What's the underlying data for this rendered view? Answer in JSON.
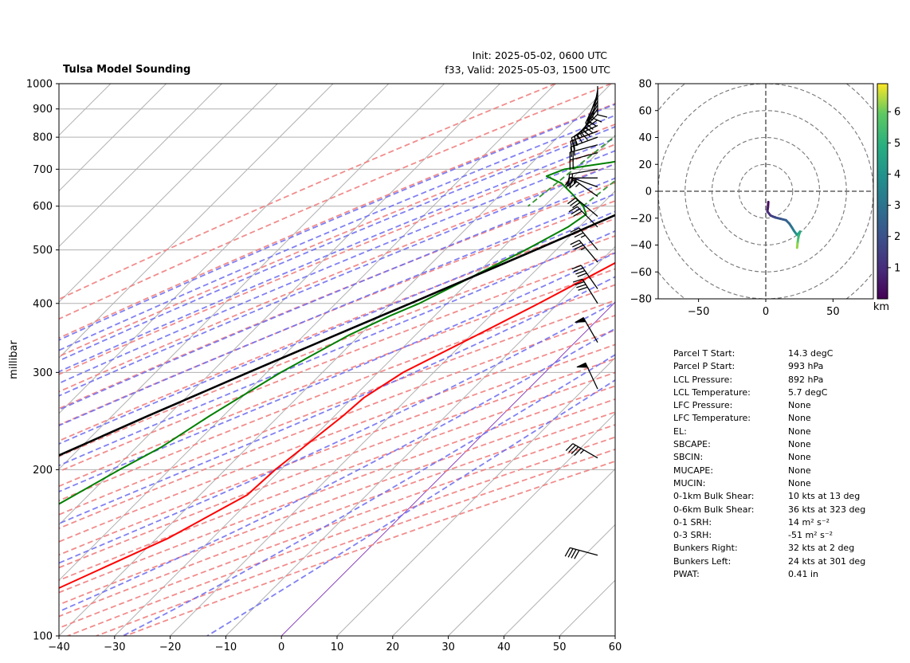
{
  "header": {
    "title": "Tulsa Model Sounding",
    "init": "Init: 2025-05-02, 0600 UTC",
    "valid": "f33, Valid: 2025-05-03, 1500 UTC"
  },
  "colors": {
    "temperature": "#ff0000",
    "dewpoint": "#008000",
    "parcel": "#000000",
    "dry_adiabat": "#f08080",
    "moist_adiabat": "#6a6af0",
    "mixing_ratio": "#228b22",
    "isobar": "#b0b0b0",
    "isotherm": "#b0b0b0",
    "zero_isotherm": "#8a3fbf"
  },
  "chart_data": [
    {
      "type": "line",
      "chart": "skew-t",
      "ylabel": "millibar",
      "xlabel": "",
      "xlim": [
        -40,
        60
      ],
      "ylim": [
        1000,
        100
      ],
      "y_scale": "log",
      "skew_deg": 45,
      "grid": true,
      "xticks": [
        -40,
        -30,
        -20,
        -10,
        0,
        10,
        20,
        30,
        40,
        50,
        60
      ],
      "yticks": [
        1000,
        900,
        800,
        700,
        600,
        500,
        400,
        300,
        200,
        100
      ],
      "series": [
        {
          "key": "temperature",
          "points": [
            [
              1000,
              14.3
            ],
            [
              950,
              12.5
            ],
            [
              900,
              9.8
            ],
            [
              850,
              10.6
            ],
            [
              800,
              11.7
            ],
            [
              750,
              10.5
            ],
            [
              700,
              9.3
            ],
            [
              650,
              6.5
            ],
            [
              600,
              3.0
            ],
            [
              550,
              -1.0
            ],
            [
              500,
              -5.0
            ],
            [
              450,
              -9.0
            ],
            [
              400,
              -13.5
            ],
            [
              350,
              -19.0
            ],
            [
              300,
              -25.5
            ],
            [
              270,
              -28.0
            ],
            [
              250,
              -28.5
            ],
            [
              200,
              -31.0
            ],
            [
              180,
              -31.5
            ],
            [
              150,
              -38.0
            ],
            [
              120,
              -49.5
            ],
            [
              100,
              -57.0
            ]
          ]
        },
        {
          "key": "dewpoint",
          "points": [
            [
              1000,
              7.7
            ],
            [
              960,
              7.5
            ],
            [
              940,
              4.0
            ],
            [
              920,
              2.5
            ],
            [
              900,
              1.0
            ],
            [
              870,
              -0.5
            ],
            [
              850,
              -2.5
            ],
            [
              820,
              -5.5
            ],
            [
              800,
              -8.5
            ],
            [
              780,
              -12.5
            ],
            [
              750,
              -18.0
            ],
            [
              720,
              -26.0
            ],
            [
              700,
              -33.0
            ],
            [
              680,
              -35.0
            ],
            [
              660,
              -31.0
            ],
            [
              630,
              -27.0
            ],
            [
              600,
              -23.0
            ],
            [
              580,
              -21.0
            ],
            [
              550,
              -22.0
            ],
            [
              500,
              -25.5
            ],
            [
              450,
              -30.0
            ],
            [
              400,
              -35.0
            ],
            [
              380,
              -38.0
            ],
            [
              350,
              -42.0
            ],
            [
              300,
              -47.5
            ],
            [
              250,
              -52.5
            ],
            [
              220,
              -55.5
            ],
            [
              200,
              -59.0
            ],
            [
              150,
              -68.5
            ],
            [
              120,
              -72.0
            ],
            [
              100,
              -79.0
            ]
          ]
        },
        {
          "key": "parcel",
          "points": [
            [
              1000,
              14.9
            ],
            [
              992,
              14.3
            ],
            [
              950,
              10.4
            ],
            [
              900,
              5.8
            ],
            [
              892,
              5.7
            ],
            [
              850,
              3.5
            ],
            [
              800,
              0.9
            ],
            [
              750,
              -2.0
            ],
            [
              700,
              -5.5
            ],
            [
              650,
              -9.3
            ],
            [
              600,
              -13.6
            ],
            [
              550,
              -18.4
            ],
            [
              500,
              -23.7
            ],
            [
              450,
              -29.8
            ],
            [
              400,
              -36.6
            ],
            [
              350,
              -44.4
            ],
            [
              300,
              -53.3
            ],
            [
              250,
              -63.6
            ],
            [
              200,
              -75.7
            ],
            [
              150,
              -90.5
            ],
            [
              120,
              -101.0
            ],
            [
              100,
              -109.5
            ]
          ]
        }
      ],
      "wind_barbs": [
        {
          "p": 990,
          "speed_kt": 10,
          "dir_deg": 180
        },
        {
          "p": 975,
          "speed_kt": 10,
          "dir_deg": 190
        },
        {
          "p": 960,
          "speed_kt": 15,
          "dir_deg": 200
        },
        {
          "p": 945,
          "speed_kt": 15,
          "dir_deg": 205
        },
        {
          "p": 930,
          "speed_kt": 15,
          "dir_deg": 205
        },
        {
          "p": 915,
          "speed_kt": 15,
          "dir_deg": 210
        },
        {
          "p": 900,
          "speed_kt": 15,
          "dir_deg": 215
        },
        {
          "p": 880,
          "speed_kt": 15,
          "dir_deg": 225
        },
        {
          "p": 860,
          "speed_kt": 15,
          "dir_deg": 235
        },
        {
          "p": 840,
          "speed_kt": 20,
          "dir_deg": 245
        },
        {
          "p": 820,
          "speed_kt": 20,
          "dir_deg": 250
        },
        {
          "p": 800,
          "speed_kt": 20,
          "dir_deg": 250
        },
        {
          "p": 775,
          "speed_kt": 20,
          "dir_deg": 255
        },
        {
          "p": 750,
          "speed_kt": 20,
          "dir_deg": 255
        },
        {
          "p": 700,
          "speed_kt": 20,
          "dir_deg": 260
        },
        {
          "p": 675,
          "speed_kt": 25,
          "dir_deg": 270
        },
        {
          "p": 650,
          "speed_kt": 25,
          "dir_deg": 290
        },
        {
          "p": 625,
          "speed_kt": 25,
          "dir_deg": 305
        },
        {
          "p": 575,
          "speed_kt": 30,
          "dir_deg": 310
        },
        {
          "p": 550,
          "speed_kt": 30,
          "dir_deg": 315
        },
        {
          "p": 500,
          "speed_kt": 35,
          "dir_deg": 320
        },
        {
          "p": 475,
          "speed_kt": 35,
          "dir_deg": 320
        },
        {
          "p": 425,
          "speed_kt": 40,
          "dir_deg": 325
        },
        {
          "p": 400,
          "speed_kt": 40,
          "dir_deg": 328
        },
        {
          "p": 340,
          "speed_kt": 50,
          "dir_deg": 330
        },
        {
          "p": 280,
          "speed_kt": 50,
          "dir_deg": 335
        },
        {
          "p": 210,
          "speed_kt": 45,
          "dir_deg": 300
        },
        {
          "p": 140,
          "speed_kt": 40,
          "dir_deg": 285
        }
      ]
    },
    {
      "type": "line",
      "chart": "hodograph",
      "xlabel": "",
      "ylabel": "",
      "xlim": [
        -80,
        80
      ],
      "ylim": [
        -80,
        80
      ],
      "xticks": [
        -50,
        0,
        50
      ],
      "yticks": [
        -80,
        -60,
        -40,
        -20,
        0,
        20,
        40,
        60,
        80
      ],
      "rings": [
        20,
        40,
        60,
        80,
        100,
        120
      ],
      "colorbar": {
        "label": "km",
        "min": 0,
        "max": 6.9,
        "ticks": [
          1,
          2,
          3,
          4,
          5,
          6
        ],
        "colormap": "viridis"
      },
      "points": [
        [
          1.9,
          -8.0,
          0.0
        ],
        [
          1.6,
          -12.0,
          0.4
        ],
        [
          1.2,
          -15.0,
          0.8
        ],
        [
          3.5,
          -18.0,
          1.2
        ],
        [
          7.0,
          -19.5,
          1.6
        ],
        [
          11.0,
          -20.5,
          2.0
        ],
        [
          15.0,
          -21.5,
          2.3
        ],
        [
          17.5,
          -24.0,
          2.6
        ],
        [
          19.5,
          -27.0,
          3.0
        ],
        [
          21.0,
          -29.5,
          3.4
        ],
        [
          22.5,
          -31.5,
          3.8
        ],
        [
          23.5,
          -32.5,
          4.2
        ],
        [
          25.5,
          -30.0,
          4.6
        ],
        [
          24.5,
          -33.0,
          5.0
        ],
        [
          24.0,
          -36.0,
          5.5
        ],
        [
          23.6,
          -39.0,
          6.0
        ],
        [
          23.3,
          -42.0,
          6.5
        ]
      ]
    }
  ],
  "parameters": [
    {
      "label": "Parcel T Start:",
      "value": "14.3 degC"
    },
    {
      "label": "Parcel P Start:",
      "value": "993 hPa"
    },
    {
      "label": "LCL Pressure:",
      "value": "892 hPa"
    },
    {
      "label": "LCL Temperature:",
      "value": "5.7 degC"
    },
    {
      "label": "LFC Pressure:",
      "value": "None"
    },
    {
      "label": "LFC Temperature:",
      "value": "None"
    },
    {
      "label": "EL:",
      "value": "None"
    },
    {
      "label": "SBCAPE:",
      "value": "None"
    },
    {
      "label": "SBCIN:",
      "value": "None"
    },
    {
      "label": "MUCAPE:",
      "value": "None"
    },
    {
      "label": "MUCIN:",
      "value": "None"
    },
    {
      "label": "0-1km Bulk Shear:",
      "value": "10 kts at 13 deg"
    },
    {
      "label": "0-6km Bulk Shear:",
      "value": "36 kts at 323 deg"
    },
    {
      "label": "0-1 SRH:",
      "value": "14 m² s⁻²"
    },
    {
      "label": "0-3 SRH:",
      "value": "-51 m² s⁻²"
    },
    {
      "label": "Bunkers Right:",
      "value": "32 kts at 2 deg"
    },
    {
      "label": "Bunkers Left:",
      "value": "24 kts at 301 deg"
    },
    {
      "label": "PWAT:",
      "value": "0.41 in"
    }
  ]
}
